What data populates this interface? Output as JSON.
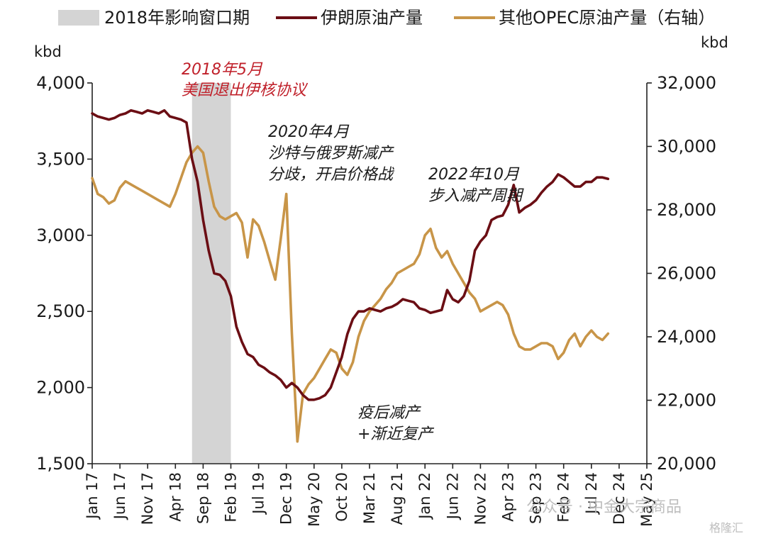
{
  "chart_data": {
    "type": "line",
    "legend": {
      "position": "top",
      "items": [
        {
          "label": "2018年影响窗口期",
          "kind": "band",
          "color": "#d4d4d4"
        },
        {
          "label": "伊朗原油产量",
          "kind": "line",
          "color": "#6b0e14"
        },
        {
          "label": "其他OPEC原油产量（右轴）",
          "kind": "line",
          "color": "#c89548"
        }
      ]
    },
    "ylabel_left": "kbd",
    "ylabel_right": "kbd",
    "y_left": {
      "lim": [
        1500,
        4000
      ],
      "ticks": [
        1500,
        2000,
        2500,
        3000,
        3500,
        4000
      ],
      "tick_labels": [
        "1,500",
        "2,000",
        "2,500",
        "3,000",
        "3,500",
        "4,000"
      ]
    },
    "y_right": {
      "lim": [
        20000,
        32000
      ],
      "ticks": [
        20000,
        22000,
        24000,
        26000,
        28000,
        30000,
        32000
      ],
      "tick_labels": [
        "20,000",
        "22,000",
        "24,000",
        "26,000",
        "28,000",
        "30,000",
        "32,000"
      ]
    },
    "x_range_months": [
      "2017-01",
      "2025-05"
    ],
    "x_tick_labels": [
      "Jan 17",
      "Jun 17",
      "Nov 17",
      "Apr 18",
      "Sep 18",
      "Feb 19",
      "Jul 19",
      "Dec 19",
      "May 20",
      "Oct 20",
      "Mar 21",
      "Aug 21",
      "Jan 22",
      "Jun 22",
      "Nov 22",
      "Apr 23",
      "Sep 23",
      "Feb 24",
      "Jul 24",
      "Dec 24",
      "May 25"
    ],
    "shaded_band": {
      "label": "2018年影响窗口期",
      "start": "2018-07",
      "end": "2019-02"
    },
    "series": [
      {
        "name": "伊朗原油产量",
        "axis": "left",
        "color": "#6b0e14",
        "start": "2017-01",
        "values": [
          3800,
          3780,
          3770,
          3760,
          3770,
          3790,
          3800,
          3820,
          3810,
          3800,
          3820,
          3810,
          3800,
          3820,
          3780,
          3770,
          3760,
          3740,
          3500,
          3350,
          3100,
          2900,
          2750,
          2740,
          2700,
          2600,
          2400,
          2300,
          2220,
          2200,
          2150,
          2130,
          2100,
          2080,
          2050,
          2000,
          2030,
          2000,
          1950,
          1920,
          1920,
          1930,
          1950,
          2000,
          2100,
          2200,
          2350,
          2450,
          2500,
          2500,
          2520,
          2510,
          2500,
          2520,
          2530,
          2550,
          2580,
          2570,
          2560,
          2520,
          2510,
          2490,
          2500,
          2510,
          2640,
          2580,
          2560,
          2600,
          2700,
          2900,
          2960,
          3000,
          3100,
          3120,
          3130,
          3200,
          3330,
          3150,
          3180,
          3200,
          3230,
          3280,
          3320,
          3350,
          3400,
          3380,
          3350,
          3320,
          3320,
          3350,
          3350,
          3380,
          3380,
          3370
        ]
      },
      {
        "name": "其他OPEC原油产量（右轴）",
        "axis": "right",
        "color": "#c89548",
        "start": "2017-01",
        "values": [
          29000,
          28500,
          28400,
          28200,
          28300,
          28700,
          28900,
          28800,
          28700,
          28600,
          28500,
          28400,
          28300,
          28200,
          28100,
          28500,
          29000,
          29500,
          29800,
          30000,
          29800,
          28900,
          28100,
          27800,
          27700,
          27800,
          27900,
          27600,
          26500,
          27700,
          27500,
          27000,
          26400,
          25800,
          27100,
          28500,
          24100,
          20700,
          22200,
          22500,
          22700,
          23000,
          23300,
          23600,
          23500,
          23000,
          22800,
          23200,
          24000,
          24500,
          24800,
          25000,
          25200,
          25500,
          25700,
          26000,
          26100,
          26200,
          26300,
          26600,
          27200,
          27400,
          26800,
          26500,
          26700,
          26300,
          26000,
          25700,
          25400,
          25200,
          24800,
          24900,
          25000,
          25100,
          25000,
          24700,
          24100,
          23700,
          23600,
          23600,
          23700,
          23800,
          23800,
          23700,
          23300,
          23500,
          23900,
          24100,
          23700,
          24000,
          24200,
          24000,
          23900,
          24100
        ]
      }
    ],
    "annotations": [
      {
        "key": "us_exit",
        "lines": [
          "2018年5月",
          "美国退出伊核协议"
        ],
        "color": "#c0202a"
      },
      {
        "key": "price_war",
        "lines": [
          "2020年4月",
          "沙特与俄罗斯减产",
          "分歧，开启价格战"
        ],
        "color": "#1a1a1a"
      },
      {
        "key": "cut_cycle",
        "lines": [
          "2022年10月",
          "步入减产周期"
        ],
        "color": "#1a1a1a"
      },
      {
        "key": "pandemic",
        "lines": [
          "疫后减产",
          "+渐近复产"
        ],
        "color": "#1a1a1a"
      }
    ],
    "grid": false
  },
  "watermark": {
    "text1": "公众号 · 中金大宗商品",
    "text2": "格隆汇"
  }
}
